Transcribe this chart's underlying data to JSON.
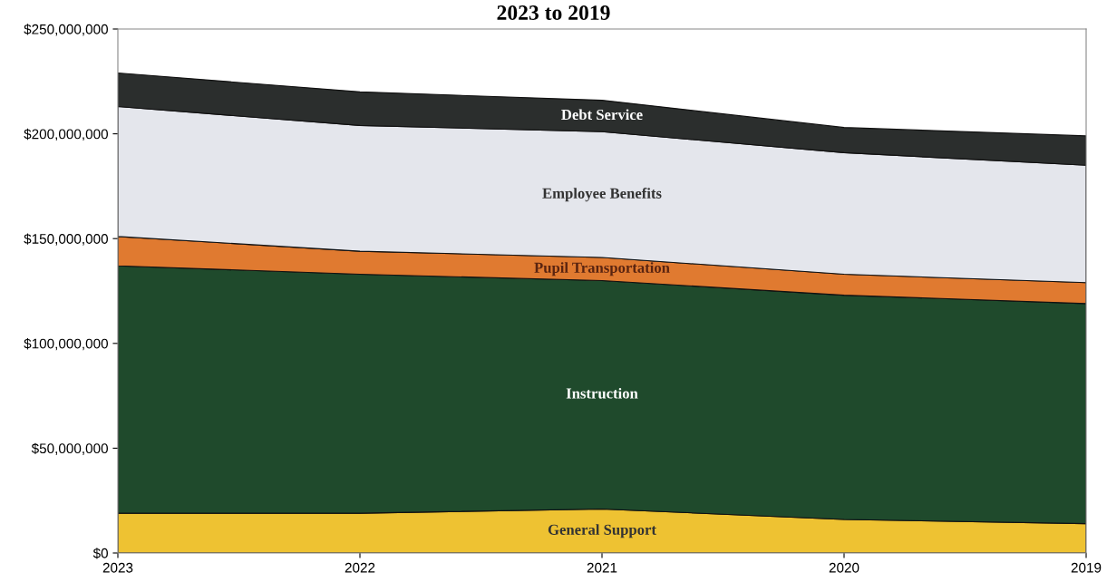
{
  "chart_data": {
    "type": "area",
    "stacked": true,
    "title": "2023 to 2019",
    "x": [
      2023,
      2022,
      2021,
      2020,
      2019
    ],
    "xlim": [
      2023,
      2019
    ],
    "xticks": [
      2023,
      2022,
      2021,
      2020,
      2019
    ],
    "ylim": [
      0,
      250000000
    ],
    "yticks": [
      {
        "value": 0,
        "label": "$0"
      },
      {
        "value": 50000000,
        "label": "$50,000,000"
      },
      {
        "value": 100000000,
        "label": "$100,000,000"
      },
      {
        "value": 150000000,
        "label": "$150,000,000"
      },
      {
        "value": 200000000,
        "label": "$200,000,000"
      },
      {
        "value": 250000000,
        "label": "$250,000,000"
      }
    ],
    "grid": false,
    "legend": false,
    "series": [
      {
        "name": "General Support",
        "color": "#eec232",
        "values": [
          19000000,
          19000000,
          21000000,
          16000000,
          14000000
        ]
      },
      {
        "name": "Instruction",
        "color": "#1f4a2c",
        "values": [
          118000000,
          114000000,
          109000000,
          107000000,
          105000000
        ]
      },
      {
        "name": "Pupil Transportation",
        "color": "#e07a30",
        "values": [
          14000000,
          11000000,
          11000000,
          10000000,
          10000000
        ]
      },
      {
        "name": "Employee Benefits",
        "color": "#e4e6ec",
        "values": [
          62000000,
          60000000,
          60000000,
          58000000,
          56000000
        ]
      },
      {
        "name": "Debt Service",
        "color": "#2b2e2d",
        "values": [
          16000000,
          16000000,
          15000000,
          12000000,
          14000000
        ]
      }
    ]
  }
}
